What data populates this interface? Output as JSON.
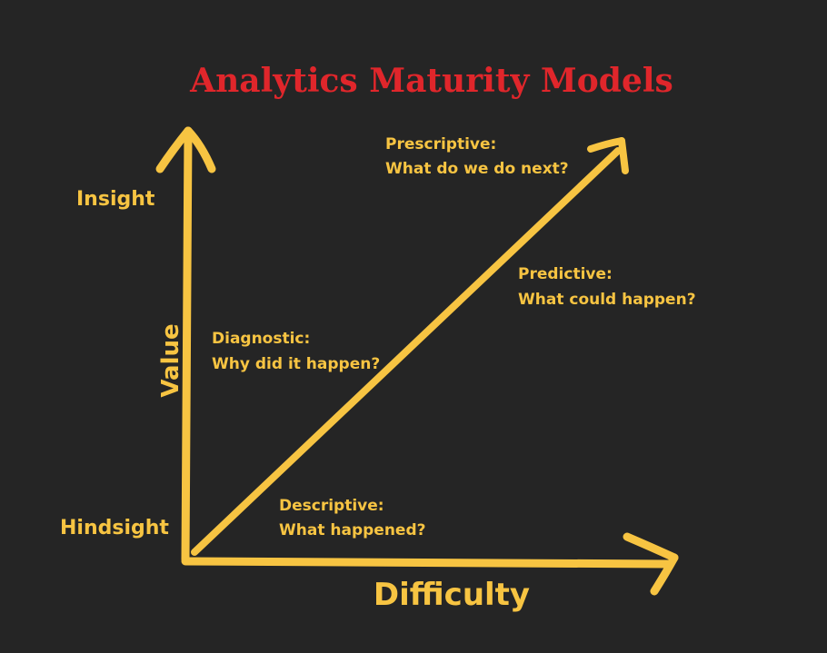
{
  "title": "Analytics Maturity Models",
  "axes": {
    "y_label": "Value",
    "y_top_label": "Insight",
    "y_bottom_label": "Hindsight",
    "x_label": "Difficulty"
  },
  "stages": {
    "descriptive": {
      "name": "Descriptive:",
      "question": "What happened?"
    },
    "diagnostic": {
      "name": "Diagnostic:",
      "question": "Why did it happen?"
    },
    "predictive": {
      "name": "Predictive:",
      "question": "What could happen?"
    },
    "prescriptive": {
      "name": "Prescriptive:",
      "question": "What do we do next?"
    }
  },
  "colors": {
    "background": "#252525",
    "title": "#e0262b",
    "ink": "#f7c442"
  }
}
